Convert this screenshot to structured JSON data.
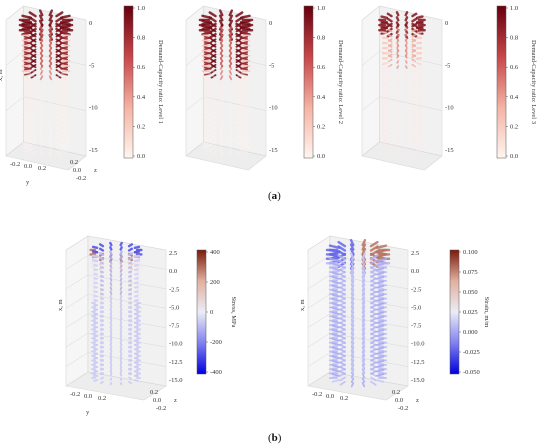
{
  "panel_labels": {
    "a": "a",
    "b": "b"
  },
  "chart_data": [
    {
      "type": "3d-scatter",
      "panel": "a",
      "xlabel": "x, m",
      "ylabel": "y",
      "zlabel": "z",
      "x_ticks": [
        "0",
        "-5",
        "-10",
        "-15"
      ],
      "y_ticks": [
        "-0.2",
        "0.0",
        "0.2"
      ],
      "z_ticks": [
        "0.2",
        "0.0",
        "-0.2"
      ],
      "colorbar": {
        "label": "Demand-Capacity ratio: Level 1",
        "range": [
          0,
          1
        ],
        "ticks": [
          "1.0",
          "0.8",
          "0.6",
          "0.4",
          "0.2",
          "0.0"
        ],
        "colors": [
          "#fff5f0",
          "#f4b3a4",
          "#c8464a",
          "#67000d"
        ]
      }
    },
    {
      "type": "3d-scatter",
      "panel": "a",
      "xlabel": "",
      "ylabel": "",
      "zlabel": "",
      "x_ticks": [
        "0",
        "-5",
        "-10",
        "-15"
      ],
      "y_ticks": [],
      "z_ticks": [],
      "colorbar": {
        "label": "Demand-Capacity ratio: Level 2",
        "range": [
          0,
          1
        ],
        "ticks": [
          "1.0",
          "0.8",
          "0.6",
          "0.4",
          "0.2",
          "0.0"
        ],
        "colors": [
          "#fff5f0",
          "#f4b3a4",
          "#c8464a",
          "#67000d"
        ]
      }
    },
    {
      "type": "3d-scatter",
      "panel": "a",
      "xlabel": "",
      "ylabel": "",
      "zlabel": "",
      "x_ticks": [
        "0",
        "-5",
        "-10",
        "-15"
      ],
      "y_ticks": [],
      "z_ticks": [],
      "colorbar": {
        "label": "Demand-Capacity ratio: Level 3",
        "range": [
          0,
          1
        ],
        "ticks": [
          "1.0",
          "0.8",
          "0.6",
          "0.4",
          "0.2",
          "0.0"
        ],
        "colors": [
          "#fff5f0",
          "#f4b3a4",
          "#c8464a",
          "#67000d"
        ]
      }
    },
    {
      "type": "3d-scatter",
      "panel": "b",
      "xlabel": "x, m",
      "ylabel": "y",
      "zlabel": "z",
      "x_ticks": [
        "2.5",
        "0.0",
        "-2.5",
        "-5.0",
        "-7.5",
        "-10.0",
        "-12.5",
        "-15.0"
      ],
      "y_ticks": [
        "-0.2",
        "0.0",
        "0.2"
      ],
      "z_ticks": [
        "0.2",
        "0.0",
        "-0.2"
      ],
      "colorbar": {
        "label": "Stress, MPa",
        "range": [
          -450,
          450
        ],
        "ticks": [
          "400",
          "200",
          "0",
          "-200",
          "-400"
        ],
        "colors": [
          "#0000e0",
          "#8080f0",
          "#ececf6",
          "#e0b0a0",
          "#7a1a0a"
        ]
      }
    },
    {
      "type": "3d-scatter",
      "panel": "b",
      "xlabel": "x, m",
      "ylabel": "",
      "zlabel": "z",
      "x_ticks": [
        "2.5",
        "0.0",
        "-2.5",
        "-5.0",
        "-7.5",
        "-10.0",
        "-12.5",
        "-15.0"
      ],
      "y_ticks": [
        "-0.2",
        "0.0",
        "0.2"
      ],
      "z_ticks": [
        "0.2",
        "0.0",
        "-0.2"
      ],
      "colorbar": {
        "label": "Strain, m/m",
        "range": [
          -0.06,
          0.115
        ],
        "ticks": [
          "0.100",
          "0.075",
          "0.050",
          "0.025",
          "0.000",
          "-0.025",
          "-0.050"
        ],
        "colors": [
          "#0000e0",
          "#8080f0",
          "#ececf6",
          "#e0b0a0",
          "#7a1a0a"
        ]
      }
    }
  ]
}
